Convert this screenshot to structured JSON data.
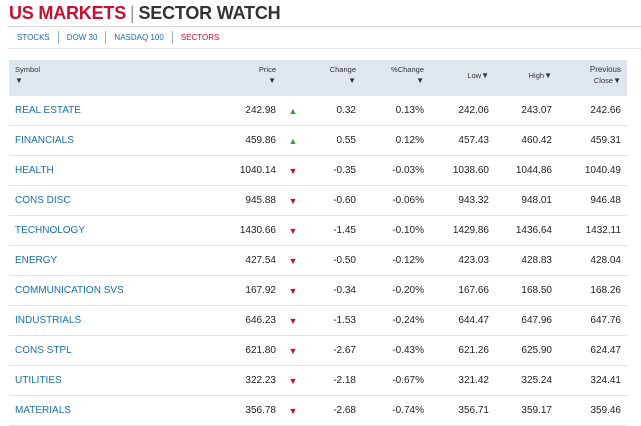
{
  "header": {
    "title_left": "US MARKETS",
    "separator": "|",
    "title_right": "SECTOR WATCH"
  },
  "nav": {
    "tabs": [
      {
        "label": "STOCKS",
        "active": false
      },
      {
        "label": "DOW 30",
        "active": false
      },
      {
        "label": "NASDAQ 100",
        "active": false
      },
      {
        "label": "SECTORS",
        "active": true
      }
    ]
  },
  "table": {
    "columns": {
      "symbol": "Symbol",
      "price": "Price",
      "change": "Change",
      "pct_change": "%Change",
      "low": "Low",
      "high": "High",
      "previous_close_1": "Previous",
      "previous_close_2": "Close"
    },
    "sort_glyph": "▼",
    "rows": [
      {
        "symbol": "REAL ESTATE",
        "price": "242.98",
        "direction": "up",
        "arrow": "▲",
        "change": "0.32",
        "pct_change": "0.13%",
        "low": "242.06",
        "high": "243.07",
        "prev_close": "242.66"
      },
      {
        "symbol": "FINANCIALS",
        "price": "459.86",
        "direction": "up",
        "arrow": "▲",
        "change": "0.55",
        "pct_change": "0.12%",
        "low": "457.43",
        "high": "460.42",
        "prev_close": "459.31"
      },
      {
        "symbol": "HEALTH",
        "price": "1040.14",
        "direction": "down",
        "arrow": "▼",
        "change": "-0.35",
        "pct_change": "-0.03%",
        "low": "1038.60",
        "high": "1044.86",
        "prev_close": "1040.49"
      },
      {
        "symbol": "CONS DISC",
        "price": "945.88",
        "direction": "down",
        "arrow": "▼",
        "change": "-0.60",
        "pct_change": "-0.06%",
        "low": "943.32",
        "high": "948.01",
        "prev_close": "946.48"
      },
      {
        "symbol": "TECHNOLOGY",
        "price": "1430.66",
        "direction": "down",
        "arrow": "▼",
        "change": "-1.45",
        "pct_change": "-0.10%",
        "low": "1429.86",
        "high": "1436.64",
        "prev_close": "1432.11"
      },
      {
        "symbol": "ENERGY",
        "price": "427.54",
        "direction": "down",
        "arrow": "▼",
        "change": "-0.50",
        "pct_change": "-0.12%",
        "low": "423.03",
        "high": "428.83",
        "prev_close": "428.04"
      },
      {
        "symbol": "COMMUNICATION SVS",
        "price": "167.92",
        "direction": "down",
        "arrow": "▼",
        "change": "-0.34",
        "pct_change": "-0.20%",
        "low": "167.66",
        "high": "168.50",
        "prev_close": "168.26"
      },
      {
        "symbol": "INDUSTRIALS",
        "price": "646.23",
        "direction": "down",
        "arrow": "▼",
        "change": "-1.53",
        "pct_change": "-0.24%",
        "low": "644.47",
        "high": "647.96",
        "prev_close": "647.76"
      },
      {
        "symbol": "CONS STPL",
        "price": "621.80",
        "direction": "down",
        "arrow": "▼",
        "change": "-2.67",
        "pct_change": "-0.43%",
        "low": "621.26",
        "high": "625.90",
        "prev_close": "624.47"
      },
      {
        "symbol": "UTILITIES",
        "price": "322.23",
        "direction": "down",
        "arrow": "▼",
        "change": "-2.18",
        "pct_change": "-0.67%",
        "low": "321.42",
        "high": "325.24",
        "prev_close": "324.41"
      },
      {
        "symbol": "MATERIALS",
        "price": "356.78",
        "direction": "down",
        "arrow": "▼",
        "change": "-2.68",
        "pct_change": "-0.74%",
        "low": "356.71",
        "high": "359.17",
        "prev_close": "359.46"
      }
    ]
  },
  "colors": {
    "accent_red": "#c8102e",
    "link_blue": "#1b6fa8",
    "up_green": "#3a9b3a",
    "header_bg": "#dfe6ee"
  }
}
